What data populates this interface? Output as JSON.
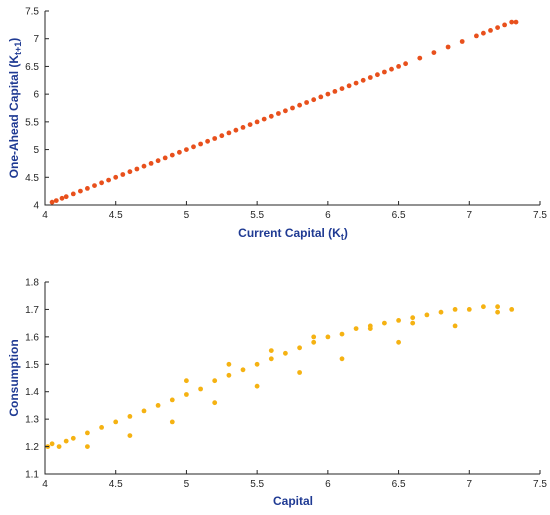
{
  "chart_data": [
    {
      "type": "scatter",
      "xlabel": "Current Capital (K",
      "xlabel_sub": "t",
      "xlabel_end": ")",
      "ylabel": "One-Ahead Capital (K",
      "ylabel_sub": "t+1",
      "ylabel_end": ")",
      "xlim": [
        4,
        7.5
      ],
      "ylim": [
        4,
        7.5
      ],
      "xticks": [
        "4",
        "4.5",
        "5",
        "5.5",
        "6",
        "6.5",
        "7",
        "7.5"
      ],
      "yticks": [
        "4",
        "4.5",
        "5",
        "5.5",
        "6",
        "6.5",
        "7",
        "7.5"
      ],
      "grid": false,
      "marker_color": "#e8501c",
      "series": [
        {
          "x": [
            4.05,
            4.08,
            4.12,
            4.15,
            4.2,
            4.25,
            4.3,
            4.35,
            4.4,
            4.45,
            4.5,
            4.55,
            4.6,
            4.65,
            4.7,
            4.75,
            4.8,
            4.85,
            4.9,
            4.95,
            5.0,
            5.05,
            5.1,
            5.15,
            5.2,
            5.25,
            5.3,
            5.35,
            5.4,
            5.45,
            5.5,
            5.55,
            5.6,
            5.65,
            5.7,
            5.75,
            5.8,
            5.85,
            5.9,
            5.95,
            6.0,
            6.05,
            6.1,
            6.15,
            6.2,
            6.25,
            6.3,
            6.35,
            6.4,
            6.45,
            6.5,
            6.55,
            6.65,
            6.75,
            6.85,
            6.95,
            7.05,
            7.1,
            7.15,
            7.2,
            7.25,
            7.3,
            7.33
          ],
          "y": [
            4.05,
            4.08,
            4.12,
            4.15,
            4.2,
            4.25,
            4.3,
            4.35,
            4.4,
            4.45,
            4.5,
            4.55,
            4.6,
            4.65,
            4.7,
            4.75,
            4.8,
            4.85,
            4.9,
            4.95,
            5.0,
            5.05,
            5.1,
            5.15,
            5.2,
            5.25,
            5.3,
            5.35,
            5.4,
            5.45,
            5.5,
            5.55,
            5.6,
            5.65,
            5.7,
            5.75,
            5.8,
            5.85,
            5.9,
            5.95,
            6.0,
            6.05,
            6.1,
            6.15,
            6.2,
            6.25,
            6.3,
            6.35,
            6.4,
            6.45,
            6.5,
            6.55,
            6.65,
            6.75,
            6.85,
            6.95,
            7.05,
            7.1,
            7.15,
            7.2,
            7.25,
            7.3,
            7.3
          ]
        }
      ]
    },
    {
      "type": "scatter",
      "xlabel": "Capital",
      "ylabel": "Consumption",
      "xlim": [
        4,
        7.5
      ],
      "ylim": [
        1.1,
        1.8
      ],
      "xticks": [
        "4",
        "4.5",
        "5",
        "5.5",
        "6",
        "6.5",
        "7",
        "7.5"
      ],
      "yticks": [
        "1.1",
        "1.2",
        "1.3",
        "1.4",
        "1.5",
        "1.6",
        "1.7",
        "1.8"
      ],
      "grid": false,
      "marker_color": "#f5b212",
      "series": [
        {
          "x": [
            4.02,
            4.05,
            4.1,
            4.15,
            4.2,
            4.3,
            4.4,
            4.5,
            4.6,
            4.7,
            4.8,
            4.9,
            5.0,
            5.1,
            5.2,
            5.3,
            5.4,
            5.5,
            5.6,
            5.7,
            5.8,
            5.9,
            6.0,
            6.1,
            6.2,
            6.3,
            6.4,
            6.5,
            6.6,
            6.7,
            6.8,
            6.9,
            7.0,
            7.1,
            7.2,
            7.3,
            4.3,
            4.6,
            4.9,
            5.2,
            5.5,
            5.8,
            6.1,
            6.5,
            6.9,
            7.2,
            5.0,
            5.3,
            5.6,
            5.9,
            6.3,
            6.6
          ],
          "y": [
            1.2,
            1.21,
            1.2,
            1.22,
            1.23,
            1.25,
            1.27,
            1.29,
            1.31,
            1.33,
            1.35,
            1.37,
            1.39,
            1.41,
            1.44,
            1.46,
            1.48,
            1.5,
            1.52,
            1.54,
            1.56,
            1.58,
            1.6,
            1.61,
            1.63,
            1.64,
            1.65,
            1.66,
            1.67,
            1.68,
            1.69,
            1.7,
            1.7,
            1.71,
            1.71,
            1.7,
            1.2,
            1.24,
            1.29,
            1.36,
            1.42,
            1.47,
            1.52,
            1.58,
            1.64,
            1.69,
            1.44,
            1.5,
            1.55,
            1.6,
            1.63,
            1.65
          ]
        }
      ]
    }
  ]
}
